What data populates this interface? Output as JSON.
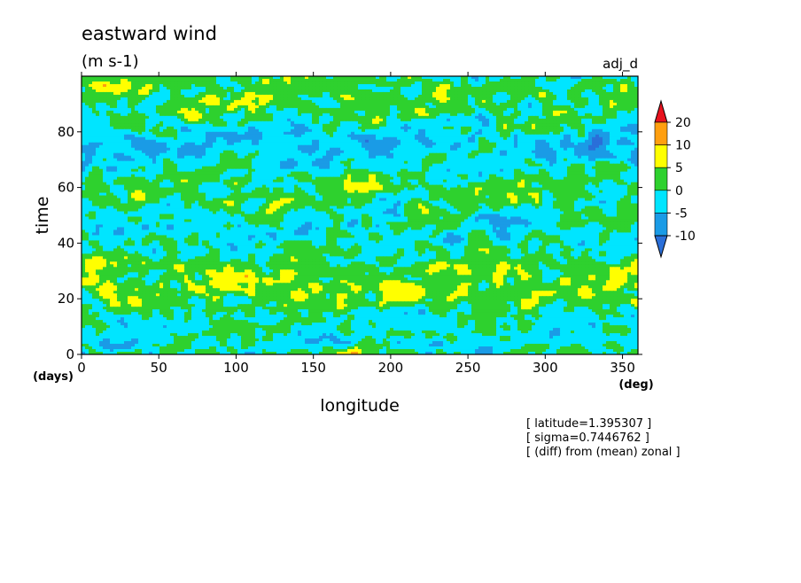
{
  "chart_data": {
    "type": "heatmap",
    "title": "eastward wind",
    "units": "(m s-1)",
    "run_label": "adj_d",
    "xlabel": "longitude",
    "ylabel": "time",
    "x_unit": "(deg)",
    "y_unit": "(days)",
    "xlim": [
      0,
      360
    ],
    "ylim": [
      0,
      100
    ],
    "x_ticks": [
      0,
      50,
      100,
      150,
      200,
      250,
      300,
      350
    ],
    "y_ticks": [
      0,
      20,
      40,
      60,
      80
    ],
    "grid": false,
    "colorbar": {
      "placement": "right",
      "levels": [
        -10,
        -5,
        0,
        5,
        10,
        20
      ],
      "colors": [
        "#2a6fd9",
        "#1a9be6",
        "#00e5ff",
        "#2ed12e",
        "#ffff00",
        "#ff9f0f",
        "#e8121e"
      ],
      "tick_labels": [
        "20",
        "10",
        "5",
        "0",
        "-5",
        "-10"
      ]
    },
    "annotations": [
      "[ latitude=1.395307 ]",
      "[ sigma=0.7446762 ]",
      "[ (diff) from (mean) zonal ]"
    ]
  }
}
